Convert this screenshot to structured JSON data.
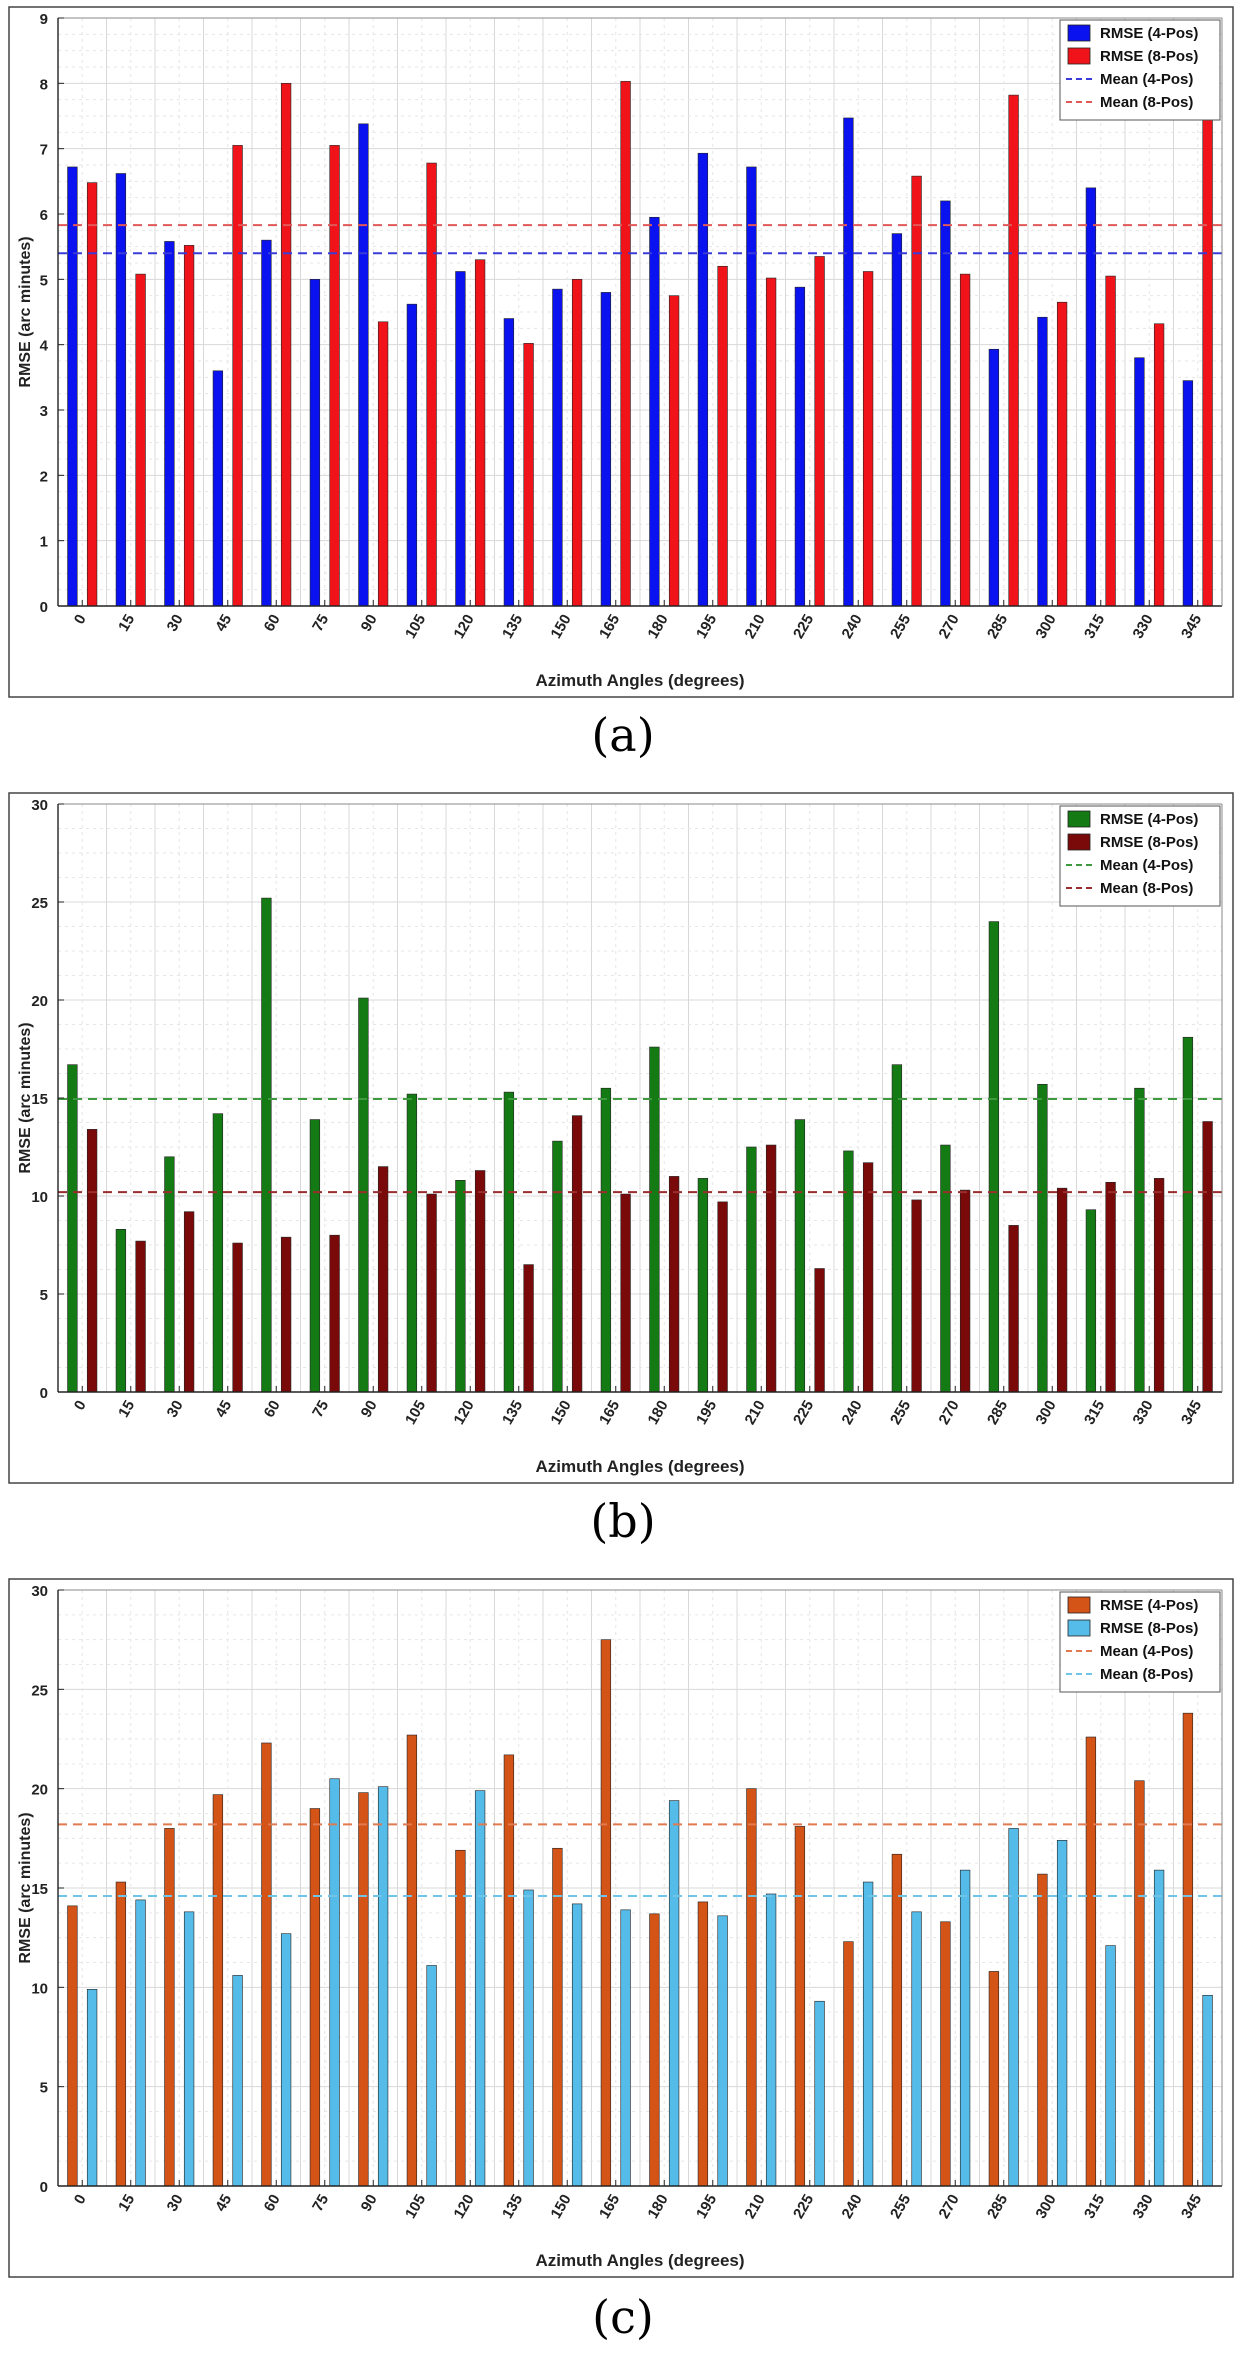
{
  "captions": [
    "(a)",
    "(b)",
    "(c)"
  ],
  "chart_data": [
    {
      "type": "bar",
      "xlabel": "Azimuth Angles (degrees)",
      "ylabel": "RMSE (arc minutes)",
      "ylim": [
        0,
        9
      ],
      "yticks": [
        "0",
        "1",
        "2",
        "3",
        "4",
        "5",
        "6",
        "7",
        "8",
        "9"
      ],
      "grid": true,
      "legend_position": "top-right",
      "categories": [
        "0",
        "15",
        "30",
        "45",
        "60",
        "75",
        "90",
        "105",
        "120",
        "135",
        "150",
        "165",
        "180",
        "195",
        "210",
        "225",
        "240",
        "255",
        "270",
        "285",
        "300",
        "315",
        "330",
        "345"
      ],
      "series": [
        {
          "name": "RMSE (4-Pos)",
          "color": "#0a12f0",
          "values": [
            6.72,
            6.62,
            5.58,
            3.6,
            5.6,
            5.0,
            7.38,
            4.62,
            5.12,
            4.4,
            4.85,
            4.8,
            5.95,
            6.93,
            6.72,
            4.88,
            7.47,
            5.7,
            6.2,
            3.93,
            4.42,
            6.4,
            3.8,
            3.45
          ]
        },
        {
          "name": "RMSE (8-Pos)",
          "color": "#f0141a",
          "values": [
            6.48,
            5.08,
            5.52,
            7.05,
            8.0,
            7.05,
            4.35,
            6.78,
            5.3,
            4.02,
            5.0,
            8.03,
            4.75,
            5.2,
            5.02,
            5.35,
            5.12,
            6.58,
            5.08,
            7.82,
            4.65,
            5.05,
            4.32,
            7.48
          ]
        }
      ],
      "means": [
        {
          "name": "Mean (4-Pos)",
          "color": "#3b3bd8",
          "value": 5.4
        },
        {
          "name": "Mean (8-Pos)",
          "color": "#e05858",
          "value": 5.83
        }
      ]
    },
    {
      "type": "bar",
      "xlabel": "Azimuth Angles (degrees)",
      "ylabel": "RMSE (arc minutes)",
      "ylim": [
        0,
        30
      ],
      "yticks": [
        "0",
        "5",
        "10",
        "15",
        "20",
        "25",
        "30"
      ],
      "grid": true,
      "legend_position": "top-right",
      "categories": [
        "0",
        "15",
        "30",
        "45",
        "60",
        "75",
        "90",
        "105",
        "120",
        "135",
        "150",
        "165",
        "180",
        "195",
        "210",
        "225",
        "240",
        "255",
        "270",
        "285",
        "300",
        "315",
        "330",
        "345"
      ],
      "series": [
        {
          "name": "RMSE (4-Pos)",
          "color": "#147a14",
          "values": [
            16.7,
            8.3,
            12.0,
            14.2,
            25.2,
            13.9,
            20.1,
            15.2,
            10.8,
            15.3,
            12.8,
            15.5,
            17.6,
            10.9,
            12.5,
            13.9,
            12.3,
            16.7,
            12.6,
            24.0,
            15.7,
            9.3,
            15.5,
            18.1
          ]
        },
        {
          "name": "RMSE (8-Pos)",
          "color": "#7a0a0a",
          "values": [
            13.4,
            7.7,
            9.2,
            7.6,
            7.9,
            8.0,
            11.5,
            10.1,
            11.3,
            6.5,
            14.1,
            10.1,
            11.0,
            9.7,
            12.6,
            6.3,
            11.7,
            9.8,
            10.3,
            8.5,
            10.4,
            10.7,
            10.9,
            13.8
          ]
        }
      ],
      "means": [
        {
          "name": "Mean (4-Pos)",
          "color": "#3f9a3f",
          "value": 14.95
        },
        {
          "name": "Mean (8-Pos)",
          "color": "#9a2d2d",
          "value": 10.2
        }
      ]
    },
    {
      "type": "bar",
      "xlabel": "Azimuth Angles (degrees)",
      "ylabel": "RMSE (arc minutes)",
      "ylim": [
        0,
        30
      ],
      "yticks": [
        "0",
        "5",
        "10",
        "15",
        "20",
        "25",
        "30"
      ],
      "grid": true,
      "legend_position": "top-right",
      "categories": [
        "0",
        "15",
        "30",
        "45",
        "60",
        "75",
        "90",
        "105",
        "120",
        "135",
        "150",
        "165",
        "180",
        "195",
        "210",
        "225",
        "240",
        "255",
        "270",
        "285",
        "300",
        "315",
        "330",
        "345"
      ],
      "series": [
        {
          "name": "RMSE (4-Pos)",
          "color": "#d45317",
          "values": [
            14.1,
            15.3,
            18.0,
            19.7,
            22.3,
            19.0,
            19.8,
            22.7,
            16.9,
            21.7,
            17.0,
            27.5,
            13.7,
            14.3,
            20.0,
            18.1,
            12.3,
            16.7,
            13.3,
            10.8,
            15.7,
            22.6,
            20.4,
            23.8
          ]
        },
        {
          "name": "RMSE (8-Pos)",
          "color": "#55bbe8",
          "values": [
            9.9,
            14.4,
            13.8,
            10.6,
            12.7,
            20.5,
            20.1,
            11.1,
            19.9,
            14.9,
            14.2,
            13.9,
            19.4,
            13.6,
            14.7,
            9.3,
            15.3,
            13.8,
            15.9,
            18.0,
            17.4,
            12.1,
            15.9,
            9.6
          ]
        }
      ],
      "means": [
        {
          "name": "Mean (4-Pos)",
          "color": "#e07a50",
          "value": 18.2
        },
        {
          "name": "Mean (8-Pos)",
          "color": "#70c4e8",
          "value": 14.6
        }
      ]
    }
  ]
}
